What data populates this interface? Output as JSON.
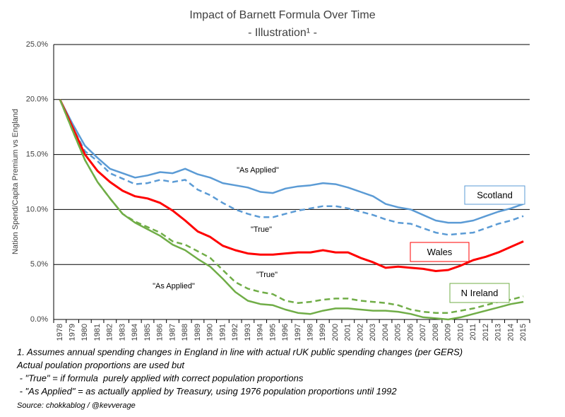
{
  "chart_data": {
    "type": "line",
    "title": "Impact of Barnett Formula Over Time",
    "subtitle": "- Illustration¹ -",
    "y_label": "Nation Spend/Capita Premium vs England",
    "categories": [
      "1978",
      "1979",
      "1980",
      "1981",
      "1982",
      "1983",
      "1984",
      "1985",
      "1986",
      "1987",
      "1988",
      "1989",
      "1990",
      "1991",
      "1992",
      "1993",
      "1994",
      "1995",
      "1996",
      "1997",
      "1998",
      "1999",
      "2000",
      "2001",
      "2002",
      "2003",
      "2004",
      "2005",
      "2006",
      "2007",
      "2008",
      "2009",
      "2010",
      "2011",
      "2012",
      "2013",
      "2014",
      "2015"
    ],
    "ylim": [
      0,
      25
    ],
    "yticks": [
      {
        "value": 0,
        "label": "0.0%"
      },
      {
        "value": 5,
        "label": "5.0%"
      },
      {
        "value": 10,
        "label": "10.0%"
      },
      {
        "value": 15,
        "label": "15.0%"
      },
      {
        "value": 20,
        "label": "20.0%"
      },
      {
        "value": 25,
        "label": "25.0%"
      }
    ],
    "grid": true,
    "series": [
      {
        "name": "Scotland",
        "label": "\"As Applied\"",
        "color": "#5b9bd5",
        "dashed": false,
        "values": [
          20.0,
          17.8,
          15.8,
          14.7,
          13.7,
          13.3,
          12.9,
          13.1,
          13.4,
          13.3,
          13.7,
          13.2,
          12.9,
          12.4,
          12.2,
          12.0,
          11.6,
          11.5,
          11.9,
          12.1,
          12.2,
          12.4,
          12.3,
          12.0,
          11.6,
          11.2,
          10.5,
          10.2,
          10.0,
          9.5,
          9.0,
          8.8,
          8.8,
          9.0,
          9.4,
          9.8,
          10.1,
          10.5
        ]
      },
      {
        "label": "\"True\"",
        "color": "#5b9bd5",
        "dashed": true,
        "values": [
          20.0,
          17.5,
          15.3,
          14.4,
          13.3,
          12.8,
          12.3,
          12.4,
          12.7,
          12.5,
          12.7,
          11.8,
          11.3,
          10.6,
          10.0,
          9.6,
          9.3,
          9.3,
          9.6,
          9.9,
          10.1,
          10.3,
          10.3,
          10.1,
          9.8,
          9.5,
          9.1,
          8.8,
          8.7,
          8.3,
          7.9,
          7.7,
          7.8,
          7.9,
          8.3,
          8.7,
          9.0,
          9.4
        ]
      },
      {
        "name": "Wales",
        "color": "#ff0000",
        "dashed": false,
        "values": [
          20.0,
          17.5,
          15.0,
          13.5,
          12.5,
          11.7,
          11.2,
          11.0,
          10.6,
          9.9,
          9.0,
          8.0,
          7.5,
          6.7,
          6.3,
          6.0,
          5.9,
          5.9,
          6.0,
          6.1,
          6.1,
          6.3,
          6.1,
          6.1,
          5.6,
          5.2,
          4.7,
          4.8,
          4.7,
          4.6,
          4.4,
          4.5,
          4.9,
          5.4,
          5.7,
          6.1,
          6.6,
          7.1
        ]
      },
      {
        "name": "N Ireland",
        "label": "\"As Applied\"",
        "color": "#70ad47",
        "dashed": false,
        "values": [
          20.0,
          17.2,
          14.5,
          12.5,
          11.0,
          9.6,
          8.8,
          8.2,
          7.6,
          6.8,
          6.3,
          5.5,
          4.8,
          3.7,
          2.5,
          1.7,
          1.4,
          1.3,
          0.9,
          0.6,
          0.5,
          0.8,
          1.0,
          1.0,
          0.9,
          0.8,
          0.8,
          0.7,
          0.5,
          0.2,
          0.1,
          0.0,
          0.2,
          0.5,
          0.8,
          1.1,
          1.4,
          1.6
        ]
      },
      {
        "label": "\"True\"",
        "color": "#70ad47",
        "dashed": true,
        "values": [
          20.0,
          17.2,
          14.5,
          12.5,
          11.0,
          9.6,
          8.9,
          8.4,
          7.9,
          7.1,
          6.8,
          6.2,
          5.6,
          4.5,
          3.4,
          2.8,
          2.5,
          2.3,
          1.7,
          1.5,
          1.6,
          1.8,
          1.9,
          1.9,
          1.7,
          1.6,
          1.5,
          1.3,
          0.9,
          0.7,
          0.6,
          0.6,
          0.8,
          1.0,
          1.3,
          1.6,
          1.8,
          2.1
        ]
      }
    ],
    "footnotes": [
      "1. Assumes annual spending changes in England in line with actual rUK public spending changes (per GERS)",
      "Actual poulation proportions are used but",
      " - \"True\" = if formula  purely applied with correct population proportions",
      " - \"As Applied\" = as actually applied by Treasury, using 1976 population proportions until 1992"
    ],
    "source": "Source:  chokkablog / @kevverage"
  }
}
